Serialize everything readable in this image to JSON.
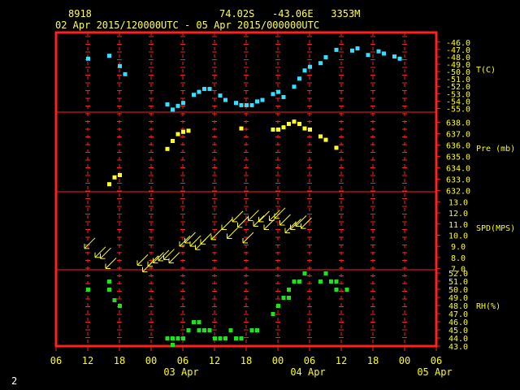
{
  "header": {
    "station_id": "8918",
    "location": "74.02S   -43.06E   3353M",
    "date_range": "02 Apr 2015/120000UTC - 05 Apr 2015/000000UTC"
  },
  "page_number": "2",
  "colors": {
    "background": "#000000",
    "frame": "#ff2020",
    "header_text": "#ffff55",
    "axis_text": "#ffff00",
    "temperature": "#33e0ff",
    "pressure": "#ffff20",
    "wind": "#ffff20",
    "humidity": "#20e020"
  },
  "x_axis": {
    "hour_labels": [
      "06",
      "12",
      "18",
      "00",
      "06",
      "12",
      "18",
      "00",
      "06",
      "12",
      "18",
      "00",
      "06"
    ],
    "day_labels": [
      "03 Apr",
      "04 Apr",
      "05 Apr"
    ]
  },
  "chart_data": {
    "type": "scatter",
    "x_unit": "hours since 02 Apr 2015 06 UTC",
    "x_range": [
      0,
      72
    ],
    "panels": [
      {
        "name": "T(C)",
        "ticks": [
          "-46.0",
          "-47.0",
          "-48.0",
          "-49.0",
          "-50.0",
          "-51.0",
          "-52.0",
          "-53.0",
          "-54.0",
          "-55.0"
        ],
        "ylim": [
          -55.5,
          -44.7
        ],
        "points": [
          [
            6,
            -48.2
          ],
          [
            10,
            -47.8
          ],
          [
            12,
            -49.2
          ],
          [
            13,
            -50.3
          ],
          [
            21,
            -54.4
          ],
          [
            22,
            -55.1
          ],
          [
            23,
            -54.6
          ],
          [
            24,
            -54.2
          ],
          [
            26,
            -53.1
          ],
          [
            27,
            -52.7
          ],
          [
            28,
            -52.3
          ],
          [
            29,
            -52.3
          ],
          [
            31,
            -53.2
          ],
          [
            32,
            -53.8
          ],
          [
            34,
            -54.2
          ],
          [
            35,
            -54.5
          ],
          [
            36,
            -54.5
          ],
          [
            37,
            -54.5
          ],
          [
            38,
            -54.0
          ],
          [
            39,
            -53.8
          ],
          [
            41,
            -53.0
          ],
          [
            42,
            -52.7
          ],
          [
            43,
            -53.4
          ],
          [
            45,
            -52.0
          ],
          [
            46,
            -50.9
          ],
          [
            47,
            -49.8
          ],
          [
            48,
            -49.3
          ],
          [
            50,
            -48.8
          ],
          [
            51,
            -48.0
          ],
          [
            53,
            -47.0
          ],
          [
            56,
            -47.1
          ],
          [
            57,
            -46.8
          ],
          [
            59,
            -47.7
          ],
          [
            61,
            -47.2
          ],
          [
            62,
            -47.5
          ],
          [
            64,
            -47.9
          ],
          [
            65,
            -48.2
          ]
        ]
      },
      {
        "name": "Pre (mb)",
        "ticks": [
          "638.0",
          "637.0",
          "636.0",
          "635.0",
          "634.0",
          "633.0",
          "632.0"
        ],
        "ylim": [
          631.9,
          638.9
        ],
        "points": [
          [
            10,
            632.6
          ],
          [
            11,
            633.2
          ],
          [
            12,
            633.4
          ],
          [
            21,
            635.7
          ],
          [
            22,
            636.4
          ],
          [
            23,
            637.0
          ],
          [
            24,
            637.2
          ],
          [
            25,
            637.3
          ],
          [
            35,
            637.5
          ],
          [
            41,
            637.4
          ],
          [
            42,
            637.4
          ],
          [
            43,
            637.6
          ],
          [
            44,
            637.9
          ],
          [
            45,
            638.1
          ],
          [
            46,
            637.9
          ],
          [
            47,
            637.5
          ],
          [
            48,
            637.4
          ],
          [
            50,
            636.8
          ],
          [
            51,
            636.5
          ],
          [
            53,
            635.8
          ]
        ]
      },
      {
        "name": "SPD(MPS)",
        "ticks": [
          "13.0",
          "12.0",
          "11.0",
          "10.0",
          "9.0",
          "8.0",
          "7.0"
        ],
        "ylim": [
          6.9,
          13.9
        ],
        "note": "wind barbs",
        "points": [
          [
            6,
            9.1
          ],
          [
            8,
            8.3
          ],
          [
            9,
            8.2
          ],
          [
            10,
            7.3
          ],
          [
            16,
            7.6
          ],
          [
            17,
            7.0
          ],
          [
            18,
            7.5
          ],
          [
            19,
            7.8
          ],
          [
            20,
            8.0
          ],
          [
            21,
            8.1
          ],
          [
            22,
            7.8
          ],
          [
            24,
            9.3
          ],
          [
            25,
            9.6
          ],
          [
            26,
            9.3
          ],
          [
            27,
            9.0
          ],
          [
            28,
            9.5
          ],
          [
            30,
            9.9
          ],
          [
            32,
            10.8
          ],
          [
            33,
            10.0
          ],
          [
            34,
            11.5
          ],
          [
            35,
            11.0
          ],
          [
            36,
            9.6
          ],
          [
            37,
            11.6
          ],
          [
            38,
            11.1
          ],
          [
            39,
            11.5
          ],
          [
            40,
            10.8
          ],
          [
            41,
            11.6
          ],
          [
            42,
            11.8
          ],
          [
            43,
            11.2
          ],
          [
            44,
            10.5
          ],
          [
            45,
            10.8
          ],
          [
            46,
            11.1
          ],
          [
            47,
            10.9
          ]
        ]
      },
      {
        "name": "RH(%)",
        "ticks": [
          "52.0",
          "51.0",
          "50.0",
          "49.0",
          "48.0",
          "47.0",
          "46.0",
          "45.0",
          "44.0",
          "43.0"
        ],
        "ylim": [
          43.0,
          52.4
        ],
        "points": [
          [
            6,
            50.0
          ],
          [
            10,
            51.0
          ],
          [
            10,
            50.0
          ],
          [
            11,
            48.7
          ],
          [
            12,
            48.0
          ],
          [
            21,
            44.0
          ],
          [
            22,
            44.0
          ],
          [
            23,
            44.0
          ],
          [
            22,
            43.2
          ],
          [
            24,
            44.0
          ],
          [
            25,
            45.0
          ],
          [
            26,
            46.0
          ],
          [
            27,
            45.0
          ],
          [
            27,
            46.0
          ],
          [
            28,
            45.0
          ],
          [
            29,
            45.0
          ],
          [
            30,
            44.0
          ],
          [
            31,
            44.0
          ],
          [
            32,
            44.0
          ],
          [
            33,
            45.0
          ],
          [
            34,
            44.0
          ],
          [
            35,
            44.0
          ],
          [
            37,
            45.0
          ],
          [
            38,
            45.0
          ],
          [
            41,
            47.0
          ],
          [
            42,
            48.0
          ],
          [
            43,
            49.0
          ],
          [
            44,
            50.0
          ],
          [
            44,
            49.0
          ],
          [
            45,
            51.0
          ],
          [
            46,
            51.0
          ],
          [
            47,
            52.0
          ],
          [
            50,
            51.0
          ],
          [
            51,
            52.0
          ],
          [
            52,
            51.0
          ],
          [
            53,
            50.0
          ],
          [
            53,
            51.0
          ],
          [
            55,
            50.0
          ]
        ]
      }
    ]
  }
}
